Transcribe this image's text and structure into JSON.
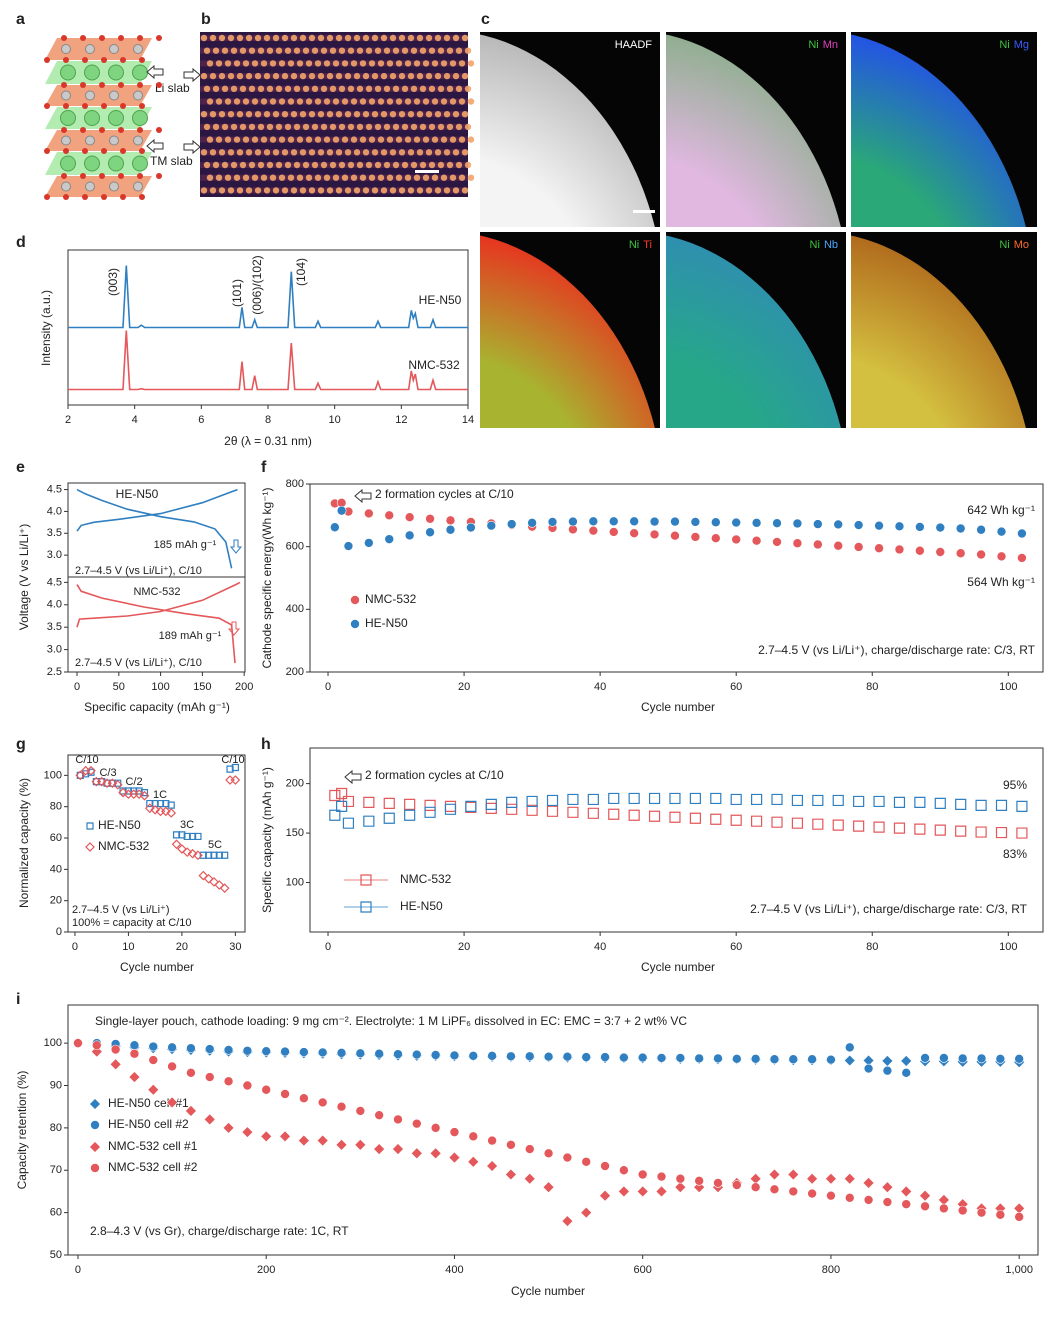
{
  "figure": {
    "a": {
      "label": "a",
      "texts": [
        "Li slab",
        "TM slab"
      ]
    },
    "b": {
      "label": "b"
    },
    "c": {
      "label": "c",
      "maps": [
        {
          "labels": [
            {
              "text": "HAADF",
              "color": "#ffffff"
            }
          ]
        },
        {
          "labels": [
            {
              "text": "Ni",
              "color": "#3cc43c"
            },
            {
              "text": "Mn",
              "color": "#e040c0"
            }
          ]
        },
        {
          "labels": [
            {
              "text": "Ni",
              "color": "#3cc43c"
            },
            {
              "text": "Mg",
              "color": "#3a5cff"
            }
          ]
        },
        {
          "labels": [
            {
              "text": "Ni",
              "color": "#3cc43c"
            },
            {
              "text": "Ti",
              "color": "#ff3a2a"
            }
          ]
        },
        {
          "labels": [
            {
              "text": "Ni",
              "color": "#3cc43c"
            },
            {
              "text": "Nb",
              "color": "#48a8ff"
            }
          ]
        },
        {
          "labels": [
            {
              "text": "Ni",
              "color": "#3cc43c"
            },
            {
              "text": "Mo",
              "color": "#ff6a2a"
            }
          ]
        }
      ]
    }
  },
  "chart_data": [
    {
      "panel": "d",
      "type": "line",
      "xlabel": "2θ (λ = 0.31 nm)",
      "ylabel": "Intensity (a.u.)",
      "xlim": [
        2,
        14
      ],
      "xticks": [
        2,
        4,
        6,
        8,
        10,
        12,
        14
      ],
      "ylim": [
        0,
        10
      ],
      "peak_labels": [
        "(003)",
        "(101)",
        "(006)/(102)",
        "(104)"
      ],
      "x": [
        2,
        3.65,
        3.75,
        3.85,
        4.1,
        4.2,
        4.3,
        7.14,
        7.22,
        7.3,
        7.52,
        7.6,
        7.68,
        8.6,
        8.7,
        8.8,
        9.42,
        9.5,
        9.58,
        11.22,
        11.3,
        11.38,
        12.22,
        12.3,
        12.36,
        12.42,
        12.5,
        12.87,
        12.95,
        13.03,
        14
      ],
      "series": [
        {
          "name": "HE-N50",
          "color": "#2f7fc1",
          "values": [
            5,
            5,
            9,
            5,
            5,
            5.15,
            5,
            5,
            6.3,
            5,
            5,
            5.5,
            5,
            5,
            8.6,
            5,
            5,
            5.4,
            5,
            5,
            5.4,
            5,
            5,
            6.1,
            5.6,
            5.9,
            5,
            5,
            5.5,
            5,
            5
          ]
        },
        {
          "name": "NMC-532",
          "color": "#e4575a",
          "values": [
            1,
            1,
            4.8,
            1,
            1,
            1.05,
            1,
            1,
            2.8,
            1,
            1,
            1.9,
            1,
            1,
            4.0,
            1,
            1,
            1.4,
            1,
            1,
            1.5,
            1,
            1,
            2.2,
            1.6,
            2.0,
            1,
            1,
            1.6,
            1,
            1
          ]
        }
      ]
    },
    {
      "panel": "e",
      "type": "line",
      "xlabel": "Specific capacity (mAh g⁻¹)",
      "ylabel": "Voltage (V vs Li/Li⁺)",
      "xlim": [
        -10.8,
        201
      ],
      "xticks": [
        0,
        50,
        100,
        150,
        200
      ],
      "subplots": [
        {
          "title": "HE-N50",
          "capacity": "185 mAh g⁻¹",
          "condition": "2.7–4.5 V (vs Li/Li⁺), C/10",
          "color": "#2f7fc1",
          "ylim": [
            2.5,
            4.65
          ],
          "yticks": [
            {
              "value": 3,
              "label": "3.0"
            },
            3.5,
            {
              "value": 4,
              "label": "4.0"
            },
            4.5
          ],
          "series": [
            {
              "x": [
                0,
                5,
                20,
                50,
                100,
                150,
                185,
                192
              ],
              "values": [
                3.55,
                3.68,
                3.75,
                3.82,
                3.95,
                4.2,
                4.45,
                4.5
              ]
            },
            {
              "x": [
                0,
                10,
                30,
                60,
                100,
                140,
                165,
                178,
                185
              ],
              "values": [
                4.5,
                4.4,
                4.25,
                4.05,
                3.88,
                3.76,
                3.6,
                3.3,
                2.7
              ]
            }
          ]
        },
        {
          "title": "NMC-532",
          "capacity": "189 mAh g⁻¹",
          "condition": "2.7–4.5 V (vs Li/Li⁺), C/10",
          "color": "#e4575a",
          "ylim": [
            2.5,
            4.62
          ],
          "yticks": [
            2.5,
            {
              "value": 3,
              "label": "3.0"
            },
            3.5,
            {
              "value": 4,
              "label": "4.0"
            },
            4.5
          ],
          "series": [
            {
              "x": [
                0,
                3,
                20,
                60,
                100,
                150,
                190,
                195
              ],
              "values": [
                3.5,
                3.68,
                3.7,
                3.75,
                3.85,
                4.1,
                4.45,
                4.5
              ]
            },
            {
              "x": [
                0,
                5,
                30,
                80,
                130,
                170,
                185,
                189
              ],
              "values": [
                4.45,
                4.3,
                4.15,
                3.95,
                3.8,
                3.7,
                3.55,
                2.7
              ]
            }
          ]
        }
      ]
    },
    {
      "panel": "f",
      "type": "scatter",
      "xlabel": "Cycle number",
      "ylabel": "Cathode specific energy(Wh kg⁻¹)",
      "annotation": "2 formation cycles at C/10",
      "end_labels": [
        "642 Wh kg⁻¹",
        "564 Wh kg⁻¹"
      ],
      "condition": "2.7–4.5 V (vs Li/Li⁺), charge/discharge rate: C/3, RT",
      "xlim": [
        -2.65,
        105.1
      ],
      "xticks": [
        0,
        20,
        40,
        60,
        80,
        100
      ],
      "ylim": [
        200,
        800
      ],
      "yticks": [
        200,
        400,
        600,
        800
      ],
      "x": [
        1,
        2,
        3,
        6,
        9,
        12,
        15,
        18,
        21,
        24,
        27,
        30,
        33,
        36,
        39,
        42,
        45,
        48,
        51,
        54,
        57,
        60,
        63,
        66,
        69,
        72,
        75,
        78,
        81,
        84,
        87,
        90,
        93,
        96,
        99,
        102
      ],
      "series": [
        {
          "name": "NMC-532",
          "color": "#e4575a",
          "marker": "circle",
          "values": [
            738,
            740,
            712,
            706,
            700,
            694,
            689,
            684,
            679,
            674,
            669,
            664,
            660,
            655,
            651,
            647,
            643,
            639,
            635,
            631,
            627,
            623,
            619,
            615,
            611,
            607,
            603,
            599,
            595,
            591,
            587,
            583,
            579,
            575,
            569,
            564
          ]
        },
        {
          "name": "HE-N50",
          "color": "#2f7fc1",
          "marker": "circle",
          "values": [
            662,
            715,
            602,
            612,
            624,
            636,
            646,
            654,
            661,
            667,
            672,
            676,
            679,
            680,
            681,
            681,
            681,
            680,
            680,
            679,
            678,
            677,
            676,
            675,
            674,
            672,
            671,
            669,
            667,
            665,
            663,
            661,
            658,
            654,
            648,
            642
          ]
        }
      ]
    },
    {
      "panel": "g",
      "type": "scatter",
      "xlabel": "Cycle number",
      "ylabel": "Normalized capacity (%)",
      "rates": [
        "C/10",
        "C/3",
        "C/2",
        "1C",
        "3C",
        "5C",
        "C/10"
      ],
      "condition": [
        "2.7–4.5 V (vs Li/Li⁺)",
        "100% = capacity at C/10"
      ],
      "xlim": [
        -1.3,
        31.8
      ],
      "xticks": [
        0,
        10,
        20,
        30
      ],
      "ylim": [
        0,
        113
      ],
      "yticks": [
        0,
        20,
        40,
        60,
        80,
        100
      ],
      "x": [
        1,
        2,
        3,
        4,
        5,
        6,
        7,
        8,
        9,
        10,
        11,
        12,
        13,
        14,
        15,
        16,
        17,
        18,
        19,
        20,
        21,
        22,
        23,
        24,
        25,
        26,
        27,
        28,
        29,
        30
      ],
      "series": [
        {
          "name": "HE-N50",
          "color": "#2f7fc1",
          "marker": "square-open",
          "values": [
            100,
            101,
            102,
            96,
            96,
            95,
            95,
            95,
            90,
            90,
            90,
            90,
            89,
            82,
            82,
            82,
            82,
            81,
            62,
            62,
            61,
            61,
            61,
            49,
            49,
            49,
            49,
            49,
            104,
            105
          ]
        },
        {
          "name": "NMC-532",
          "color": "#e4575a",
          "marker": "diamond-open",
          "values": [
            100,
            103,
            103,
            96,
            96,
            95,
            95,
            94,
            89,
            88,
            88,
            88,
            87,
            79,
            78,
            77,
            77,
            76,
            56,
            53,
            51,
            50,
            49,
            36,
            34,
            32,
            30,
            28,
            97,
            97
          ]
        }
      ]
    },
    {
      "panel": "h",
      "type": "scatter",
      "xlabel": "Cycle number",
      "ylabel": "Specific capacity (mAh g⁻¹)",
      "annotation": "2 formation cycles at C/10",
      "end_labels": [
        "95%",
        "83%"
      ],
      "condition": "2.7–4.5 V (vs Li/Li⁺), charge/discharge rate: C/3, RT",
      "xlim": [
        -2.65,
        105.1
      ],
      "xticks": [
        0,
        20,
        40,
        60,
        80,
        100
      ],
      "ylim": [
        50,
        236
      ],
      "yticks": [
        100,
        150,
        200
      ],
      "x": [
        1,
        2,
        3,
        6,
        9,
        12,
        15,
        18,
        21,
        24,
        27,
        30,
        33,
        36,
        39,
        42,
        45,
        48,
        51,
        54,
        57,
        60,
        63,
        66,
        69,
        72,
        75,
        78,
        81,
        84,
        87,
        90,
        93,
        96,
        99,
        102
      ],
      "series": [
        {
          "name": "NMC-532",
          "color": "#e4575a",
          "marker": "square-open",
          "values": [
            188,
            190,
            182,
            181,
            180,
            179,
            178,
            177,
            176,
            175,
            174,
            173,
            172,
            171,
            170,
            169,
            168,
            167,
            166,
            165,
            164,
            163,
            162,
            161,
            160,
            159,
            158,
            157,
            156,
            155,
            154,
            153,
            152,
            151,
            150.5,
            150
          ]
        },
        {
          "name": "HE-N50",
          "color": "#2f7fc1",
          "marker": "square-open",
          "values": [
            168,
            177,
            160,
            162,
            165,
            168,
            171,
            174,
            177,
            179,
            181,
            182,
            183,
            184,
            184,
            185,
            185,
            185,
            185,
            185,
            185,
            184,
            184,
            184,
            183,
            183,
            183,
            182,
            182,
            181,
            181,
            180,
            179,
            178,
            178,
            177
          ]
        }
      ]
    },
    {
      "panel": "i",
      "type": "scatter",
      "note": "Single-layer pouch, cathode loading: 9 mg cm⁻². Electrolyte: 1 M LiPF₆ dissolved in EC: EMC = 3:7 + 2 wt% VC",
      "condition": "2.8–4.3 V (vs Gr), charge/discharge rate: 1C, RT",
      "xlabel": "Cycle number",
      "ylabel": "Capacity retention (%)",
      "xlim": [
        -10.6,
        1020
      ],
      "xticks": [
        0,
        200,
        400,
        600,
        800,
        {
          "value": 1000,
          "label": "1,000"
        }
      ],
      "ylim": [
        50,
        109
      ],
      "yticks": [
        50,
        60,
        70,
        80,
        90,
        100
      ],
      "x": [
        0,
        20,
        40,
        60,
        80,
        100,
        120,
        140,
        160,
        180,
        200,
        220,
        240,
        260,
        280,
        300,
        320,
        340,
        360,
        380,
        400,
        420,
        440,
        460,
        480,
        500,
        520,
        540,
        560,
        580,
        600,
        620,
        640,
        660,
        680,
        700,
        720,
        740,
        760,
        780,
        800,
        820,
        840,
        860,
        880,
        900,
        920,
        940,
        960,
        980,
        1000
      ],
      "series": [
        {
          "name": "HE-N50 cell #1",
          "color": "#2f7fc1",
          "marker": "diamond",
          "values": [
            100,
            99.6,
            99.3,
            99,
            98.8,
            98.6,
            98.4,
            98.2,
            98,
            97.9,
            97.8,
            97.7,
            97.6,
            97.5,
            97.4,
            97.3,
            97.2,
            97.1,
            97,
            97,
            96.9,
            96.9,
            96.8,
            96.8,
            96.7,
            96.7,
            96.6,
            96.6,
            96.5,
            96.5,
            96.4,
            96.4,
            96.3,
            96.3,
            96.2,
            96.2,
            96.1,
            96.1,
            96,
            96,
            96,
            95.9,
            95.9,
            95.8,
            95.8,
            95.7,
            95.7,
            95.6,
            95.6,
            95.6,
            95.5
          ]
        },
        {
          "name": "HE-N50 cell #2",
          "color": "#2f7fc1",
          "marker": "circle",
          "values": [
            100,
            100,
            99.8,
            99.5,
            99.2,
            99,
            98.8,
            98.6,
            98.4,
            98.2,
            98.1,
            98,
            97.9,
            97.8,
            97.7,
            97.6,
            97.5,
            97.4,
            97.3,
            97.2,
            97.1,
            97,
            97,
            96.9,
            96.9,
            96.8,
            96.8,
            96.7,
            96.7,
            96.6,
            96.6,
            96.5,
            96.5,
            96.4,
            96.4,
            96.3,
            96.3,
            96.2,
            96.2,
            96.2,
            96.1,
            99,
            94,
            93.5,
            93,
            96.5,
            96.5,
            96.4,
            96.4,
            96.3,
            96.3
          ]
        },
        {
          "name": "NMC-532 cell #1",
          "color": "#e4575a",
          "marker": "diamond",
          "values": [
            100,
            98,
            95,
            92,
            89,
            86,
            84,
            82,
            80,
            79,
            78,
            78,
            77,
            77,
            76,
            76,
            75,
            75,
            74,
            74,
            73,
            72,
            71,
            69,
            68,
            66,
            58,
            60,
            64,
            65,
            65,
            65,
            66,
            66,
            66,
            67,
            68,
            69,
            69,
            68,
            68,
            68,
            67,
            66,
            65,
            64,
            63,
            62,
            61,
            61,
            61
          ]
        },
        {
          "name": "NMC-532 cell #2",
          "color": "#e4575a",
          "marker": "circle",
          "values": [
            100,
            99.5,
            98.5,
            97.5,
            96,
            94.5,
            93,
            92,
            91,
            90,
            89,
            88,
            87,
            86,
            85,
            84,
            83,
            82,
            81,
            80,
            79,
            78,
            77,
            76,
            75,
            74,
            73,
            72,
            71,
            70,
            69,
            68.5,
            68,
            67.5,
            67,
            66.5,
            66,
            65.5,
            65,
            64.5,
            64,
            63.5,
            63,
            62.5,
            62,
            61.5,
            61,
            60.5,
            60,
            59.5,
            59
          ]
        }
      ]
    }
  ]
}
